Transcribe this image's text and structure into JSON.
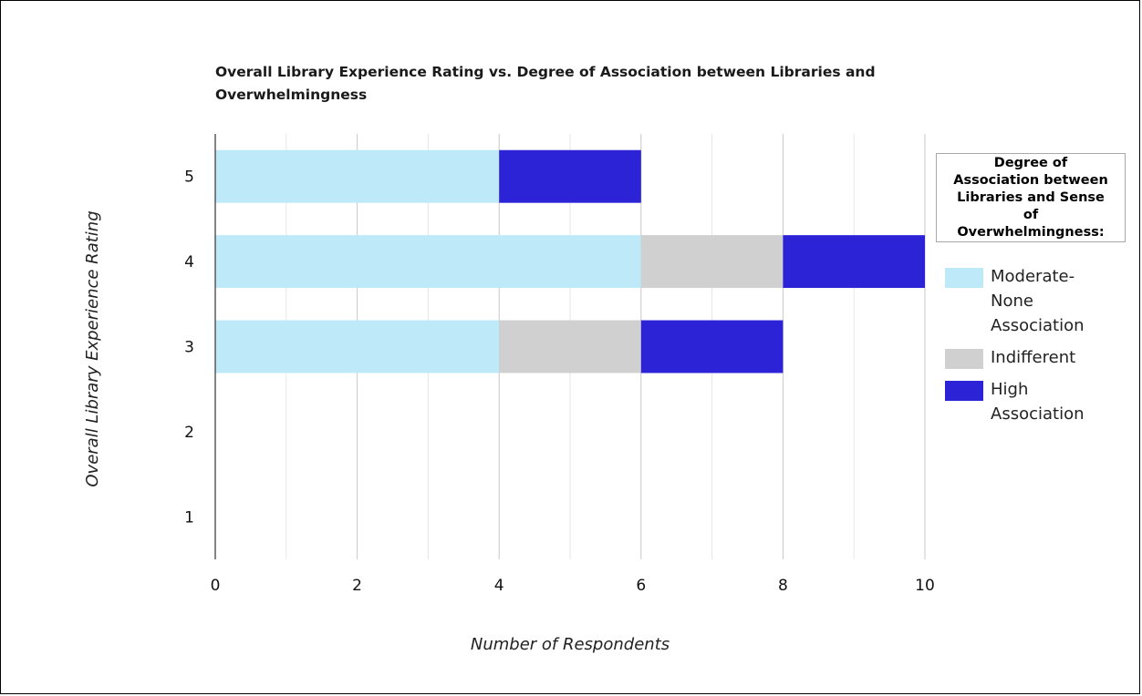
{
  "chart_data": {
    "type": "bar",
    "orientation": "horizontal",
    "stacked": true,
    "title": "Overall Library Experience Rating vs. Degree of Association between Libraries and Overwhelmingness",
    "title_lines": [
      "Overall Library Experience Rating vs. Degree of Association between Libraries and",
      "Overwhelmingness"
    ],
    "xlabel": "Number of Respondents",
    "ylabel": "Overall Library Experience Rating",
    "categories": [
      "5",
      "4",
      "3",
      "2",
      "1"
    ],
    "series": [
      {
        "name": "Moderate-None Association",
        "color": "#bee9f9",
        "values": [
          4,
          6,
          4,
          0,
          0
        ]
      },
      {
        "name": "Indifferent",
        "color": "#d0d0d0",
        "values": [
          0,
          2,
          2,
          0,
          0
        ]
      },
      {
        "name": "High Association",
        "color": "#2c23d6",
        "values": [
          2,
          2,
          2,
          0,
          0
        ]
      }
    ],
    "xlim": [
      0,
      10
    ],
    "xticks": [
      "0",
      "2",
      "4",
      "6",
      "8",
      "10"
    ],
    "grid": true,
    "legend": {
      "title": "Degree of Association between Libraries and Sense of Overwhelmingness:",
      "placement": "right",
      "labels": [
        [
          "Moderate-",
          "None",
          "Association"
        ],
        [
          "Indifferent"
        ],
        [
          "High",
          "Association"
        ]
      ]
    }
  }
}
